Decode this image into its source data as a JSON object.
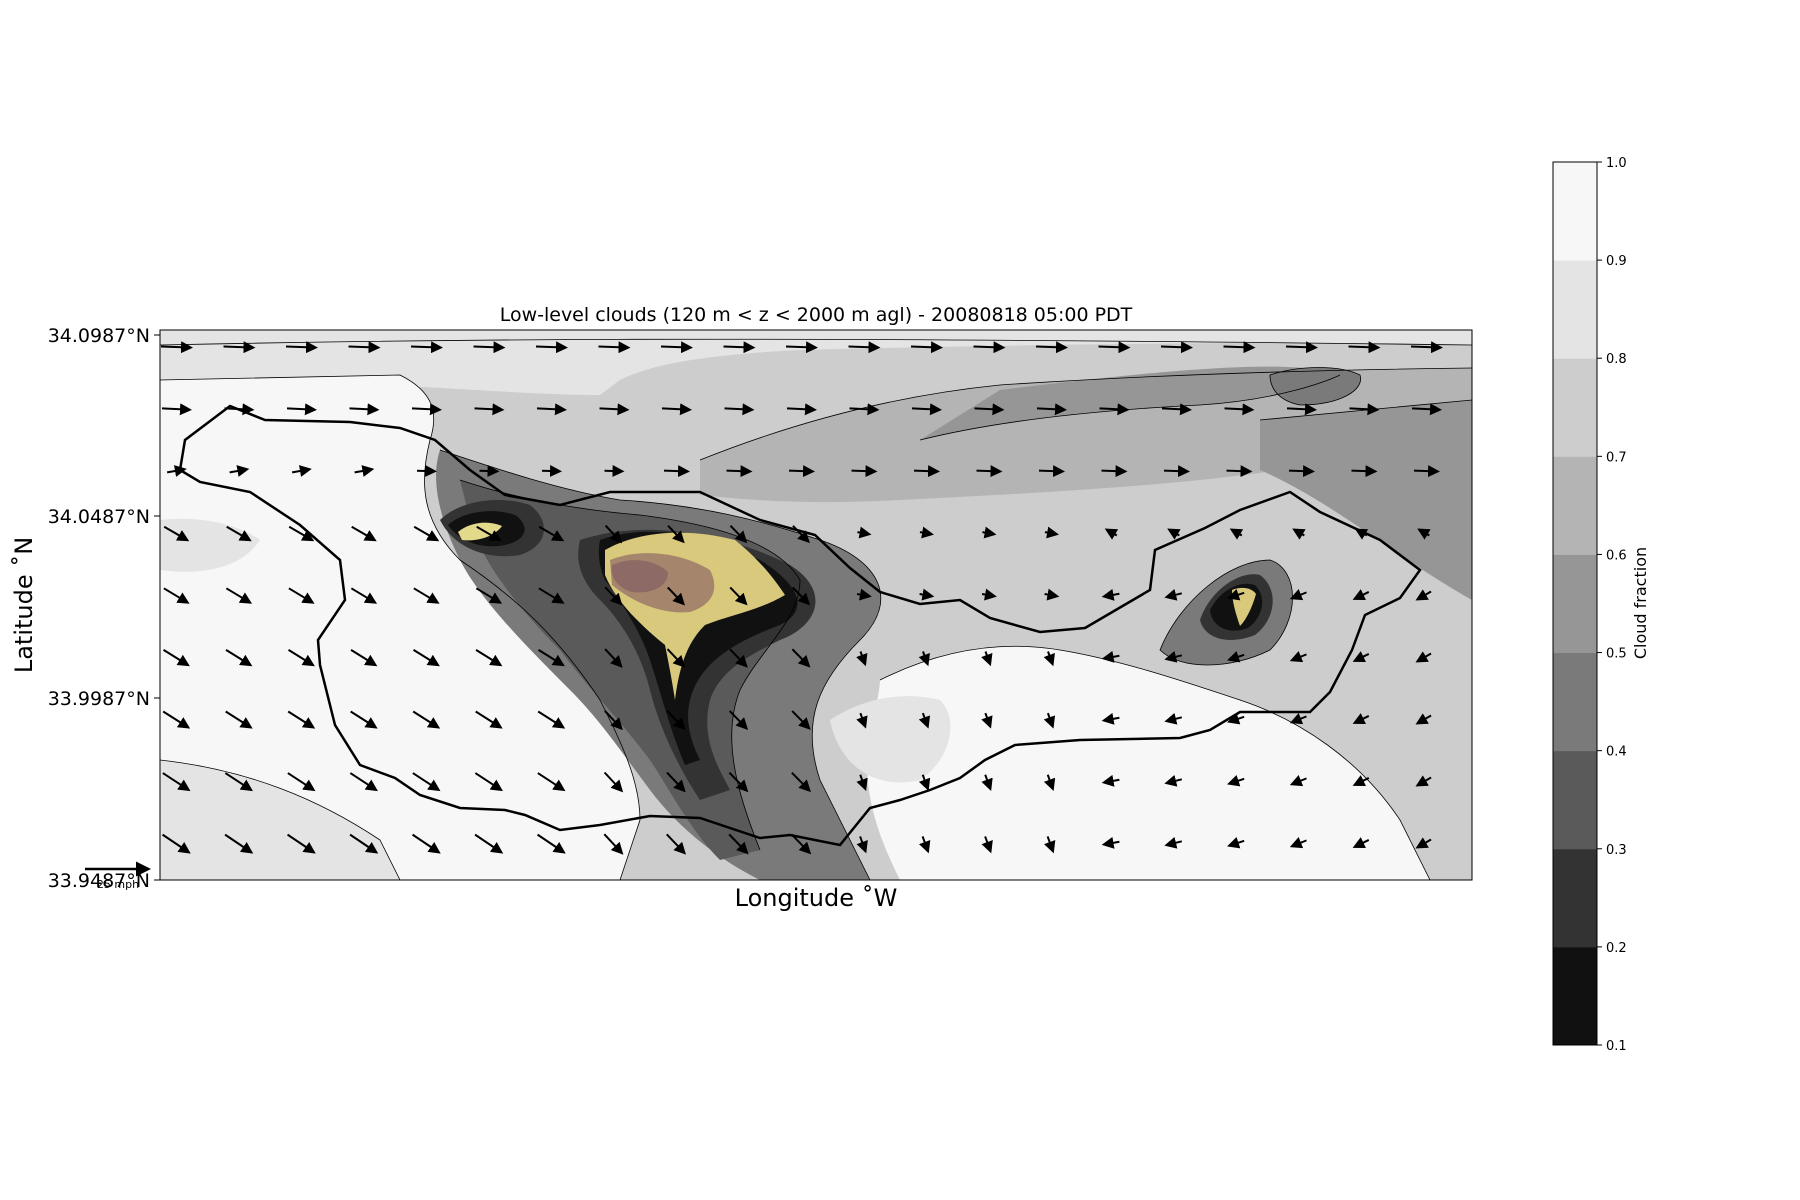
{
  "chart_data": {
    "type": "contour",
    "title": "Low-level clouds (120 m < z < 2000 m agl) - 20080818 05:00 PDT",
    "xlabel": "Longitude $^\\circ$W",
    "ylabel": "Latitude $^\\circ$N",
    "xlabel_display": "Longitude ˚W",
    "ylabel_display": "Latitude ˚N",
    "y_ticks": [
      "34.0987°N",
      "34.0487°N",
      "33.9987°N",
      "33.9487°N"
    ],
    "y_tick_values": [
      34.0987,
      34.0487,
      33.9987,
      33.9487
    ],
    "ylim": [
      33.9487,
      34.0987
    ],
    "colorbar": {
      "label": "Cloud fraction",
      "levels": [
        0.1,
        0.2,
        0.3,
        0.4,
        0.5,
        0.6,
        0.7,
        0.8,
        0.9,
        1.0
      ],
      "tick_labels": [
        "0.1",
        "0.2",
        "0.3",
        "0.4",
        "0.5",
        "0.6",
        "0.7",
        "0.8",
        "0.9",
        "1.0"
      ],
      "colors": [
        "#111111",
        "#333333",
        "#5a5a5a",
        "#7a7a7a",
        "#969696",
        "#b4b4b4",
        "#cdcdcd",
        "#e4e4e4",
        "#f7f7f7"
      ]
    },
    "quiver_key_label": "25 mph",
    "highlight_colors": [
      "#e3d98a",
      "#c9b370",
      "#a5856b",
      "#8d6a66"
    ]
  }
}
